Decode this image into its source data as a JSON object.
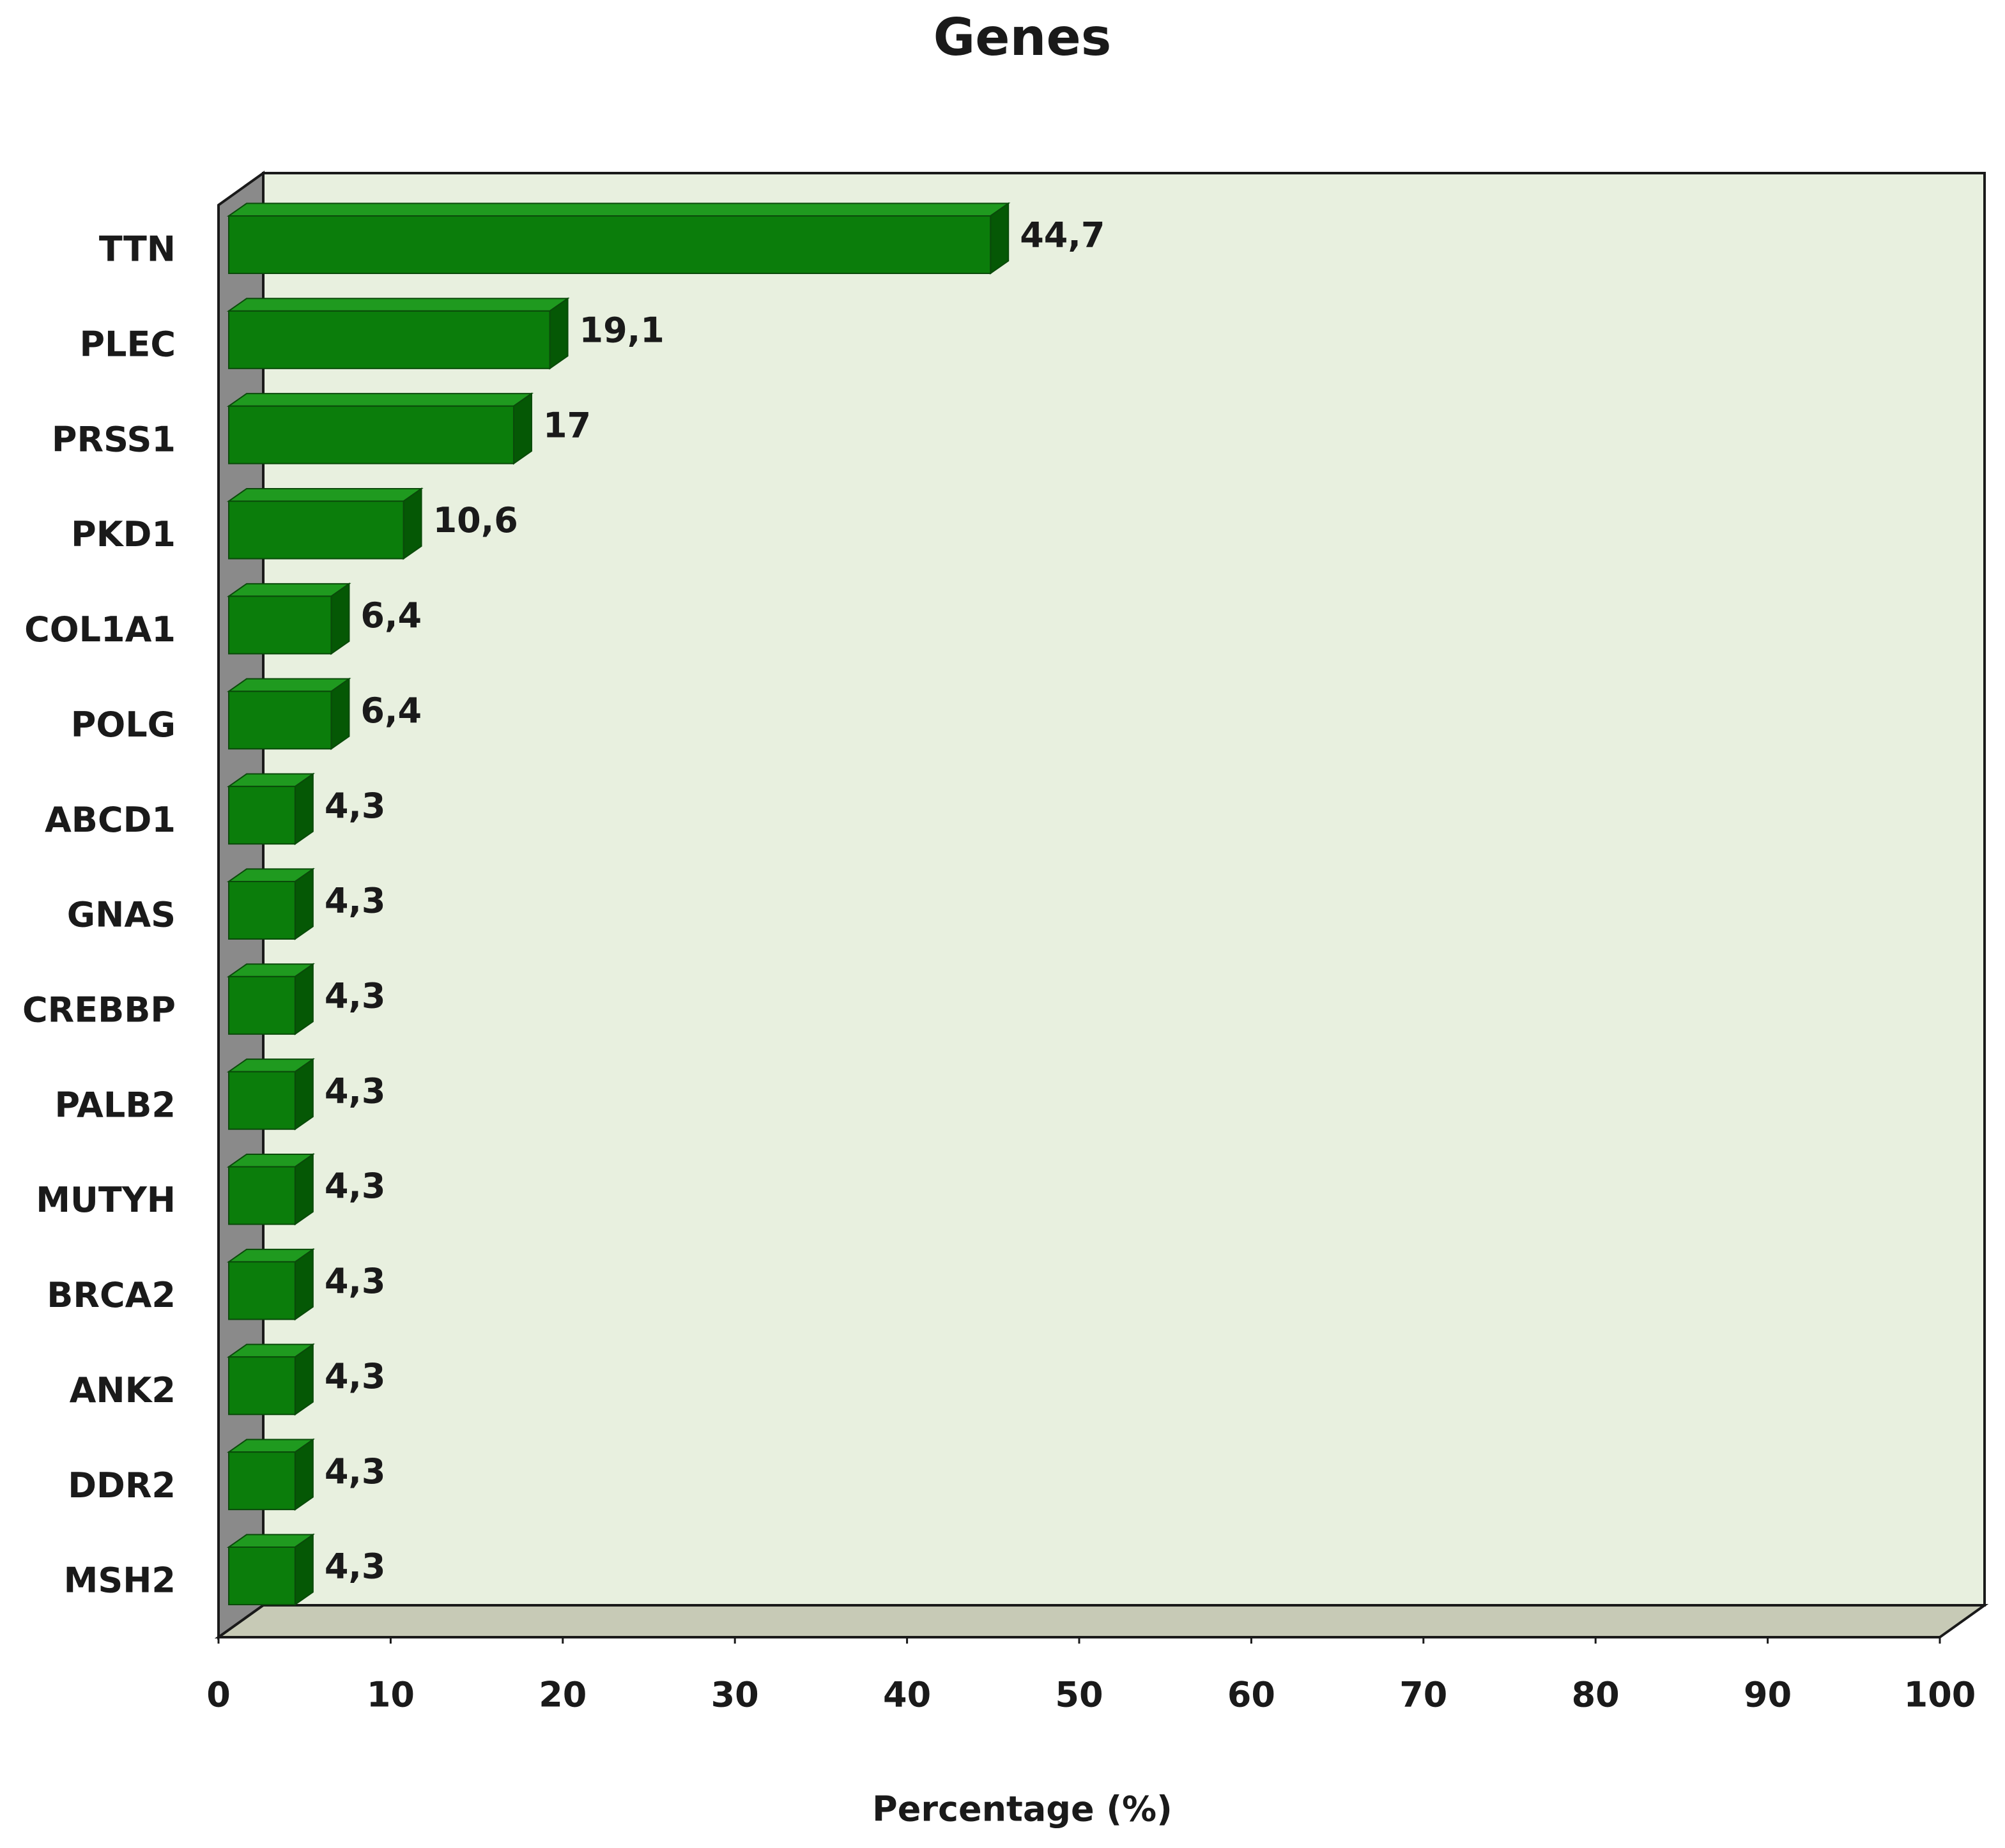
{
  "chart_data": {
    "type": "bar",
    "orientation": "horizontal",
    "title": "Genes",
    "x_label": "Percentage (%)",
    "categories": [
      "TTN",
      "PLEC",
      "PRSS1",
      "PKD1",
      "COL1A1",
      "POLG",
      "ABCD1",
      "GNAS",
      "CREBBP",
      "PALB2",
      "MUTYH",
      "BRCA2",
      "ANK2",
      "DDR2",
      "MSH2"
    ],
    "values": [
      44.7,
      19.1,
      17,
      10.6,
      6.4,
      6.4,
      4.3,
      4.3,
      4.3,
      4.3,
      4.3,
      4.3,
      4.3,
      4.3,
      4.3
    ],
    "value_labels": [
      "44,7",
      "19,1",
      "17",
      "10,6",
      "6,4",
      "6,4",
      "4,3",
      "4,3",
      "4,3",
      "4,3",
      "4,3",
      "4,3",
      "4,3",
      "4,3",
      "4,3"
    ],
    "color": "#0b7d0b",
    "xlim": [
      0,
      100
    ],
    "xticks": [
      0,
      10,
      20,
      30,
      40,
      50,
      60,
      70,
      80,
      90,
      100
    ],
    "grid": false
  }
}
